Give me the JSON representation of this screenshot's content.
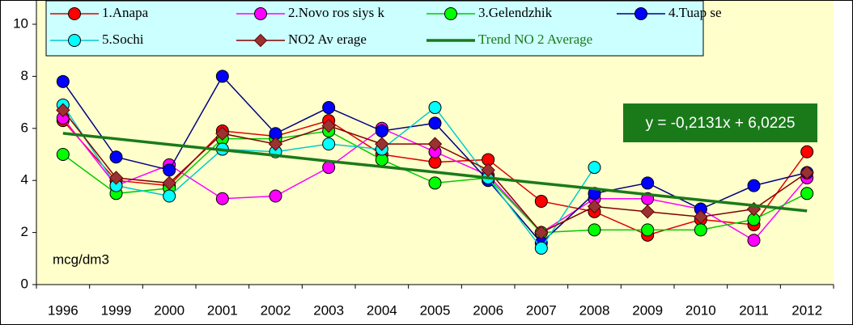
{
  "chart_data": {
    "type": "line",
    "categories": [
      "1996",
      "1999",
      "2000",
      "2001",
      "2002",
      "2003",
      "2004",
      "2005",
      "2006",
      "2007",
      "2008",
      "2009",
      "2010",
      "2011",
      "2012"
    ],
    "series": [
      {
        "name": "1.Anapa",
        "color": "#ff0000",
        "line_color": "#dd0000",
        "marker": "circle",
        "values": [
          6.3,
          4.0,
          3.8,
          5.9,
          5.7,
          6.3,
          5.0,
          4.7,
          4.8,
          3.2,
          2.8,
          1.9,
          2.5,
          2.3,
          5.1
        ]
      },
      {
        "name": "2.Novo ros siys k",
        "color": "#ff00ff",
        "line_color": "#ff00ff",
        "marker": "circle",
        "values": [
          6.4,
          3.8,
          4.6,
          3.3,
          3.4,
          4.5,
          6.0,
          5.1,
          4.2,
          2.0,
          3.3,
          3.3,
          2.9,
          1.7,
          4.1
        ]
      },
      {
        "name": "3.Gelendzhik",
        "color": "#00ff00",
        "line_color": "#00cc00",
        "marker": "circle",
        "values": [
          5.0,
          3.5,
          3.7,
          5.6,
          5.6,
          5.9,
          4.8,
          3.9,
          4.1,
          2.0,
          2.1,
          2.1,
          2.1,
          2.5,
          3.5
        ]
      },
      {
        "name": "4.Tuap se",
        "color": "#0000ff",
        "line_color": "#000080",
        "marker": "circle",
        "values": [
          7.8,
          4.9,
          4.4,
          8.0,
          5.8,
          6.8,
          5.9,
          6.2,
          4.0,
          1.6,
          3.5,
          3.9,
          2.9,
          3.8,
          4.3
        ]
      },
      {
        "name": "5.Sochi",
        "color": "#00ffff",
        "line_color": "#00cccc",
        "marker": "circle",
        "values": [
          6.9,
          3.8,
          3.4,
          5.2,
          5.1,
          5.4,
          5.2,
          6.8,
          4.1,
          1.4,
          4.5,
          null,
          null,
          null,
          null
        ]
      },
      {
        "name": "NO2 Av erage",
        "color": "#993333",
        "line_color": "#800000",
        "marker": "diamond",
        "values": [
          6.7,
          4.1,
          3.9,
          5.8,
          5.4,
          6.1,
          5.4,
          5.4,
          4.4,
          2.0,
          3.0,
          2.8,
          2.6,
          2.9,
          4.3
        ]
      },
      {
        "name": "Trend NO 2 Average",
        "color": "#1a7a1a",
        "line_color": "#1a7a1a",
        "marker": "none",
        "values": [
          5.81,
          5.6,
          5.38,
          5.17,
          4.96,
          4.74,
          4.53,
          4.32,
          4.1,
          3.89,
          3.68,
          3.46,
          3.25,
          3.04,
          2.83
        ]
      }
    ],
    "ylim": [
      0,
      10
    ],
    "yticks": [
      0,
      2,
      4,
      6,
      8,
      10
    ],
    "grid": false,
    "legend": "top",
    "annotations": {
      "equation": "y = -0,2131x + 6,0225",
      "unit": "mcg/dm3"
    }
  }
}
